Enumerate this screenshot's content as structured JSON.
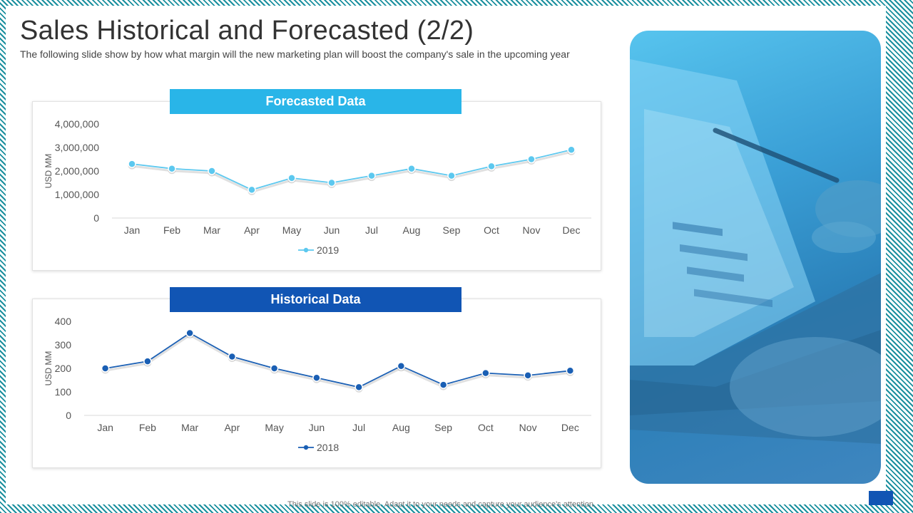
{
  "slide": {
    "title": "Sales Historical and Forecasted (2/2)",
    "subtitle": "The following slide show by how what margin will the new marketing plan will boost the company's sale in the upcoming year",
    "footer": "This slide is 100% editable. Adapt it to your needs and capture your audience's attention.",
    "photo_icon": "laptop-with-pen-photo"
  },
  "colors": {
    "forecast_accent": "#29b5e8",
    "forecast_line": "#5cc8ef",
    "historical_accent": "#1155b4",
    "historical_line": "#1a5fb4",
    "frame_stripe": "#1a8f9e"
  },
  "chart_data": [
    {
      "type": "line",
      "title": "Forecasted Data",
      "ylabel": "USD MM",
      "xlabel": "",
      "categories": [
        "Jan",
        "Feb",
        "Mar",
        "Apr",
        "May",
        "Jun",
        "Jul",
        "Aug",
        "Sep",
        "Oct",
        "Nov",
        "Dec"
      ],
      "series": [
        {
          "name": "2019",
          "values": [
            2300000,
            2100000,
            2000000,
            1200000,
            1700000,
            1500000,
            1800000,
            2100000,
            1800000,
            2200000,
            2500000,
            2900000
          ]
        }
      ],
      "ylim": [
        0,
        4000000
      ],
      "yticks": [
        0,
        1000000,
        2000000,
        3000000,
        4000000
      ],
      "ytick_labels": [
        "0",
        "1,000,000",
        "2,000,000",
        "3,000,000",
        "4,000,000"
      ],
      "legend": "bottom",
      "grid": false
    },
    {
      "type": "line",
      "title": "Historical Data",
      "ylabel": "USD MM",
      "xlabel": "",
      "categories": [
        "Jan",
        "Feb",
        "Mar",
        "Apr",
        "May",
        "Jun",
        "Jul",
        "Aug",
        "Sep",
        "Oct",
        "Nov",
        "Dec"
      ],
      "series": [
        {
          "name": "2018",
          "values": [
            200,
            230,
            350,
            250,
            200,
            160,
            120,
            210,
            130,
            180,
            170,
            190
          ]
        }
      ],
      "ylim": [
        0,
        400
      ],
      "yticks": [
        0,
        100,
        200,
        300,
        400
      ],
      "ytick_labels": [
        "0",
        "100",
        "200",
        "300",
        "400"
      ],
      "legend": "bottom",
      "grid": false
    }
  ]
}
